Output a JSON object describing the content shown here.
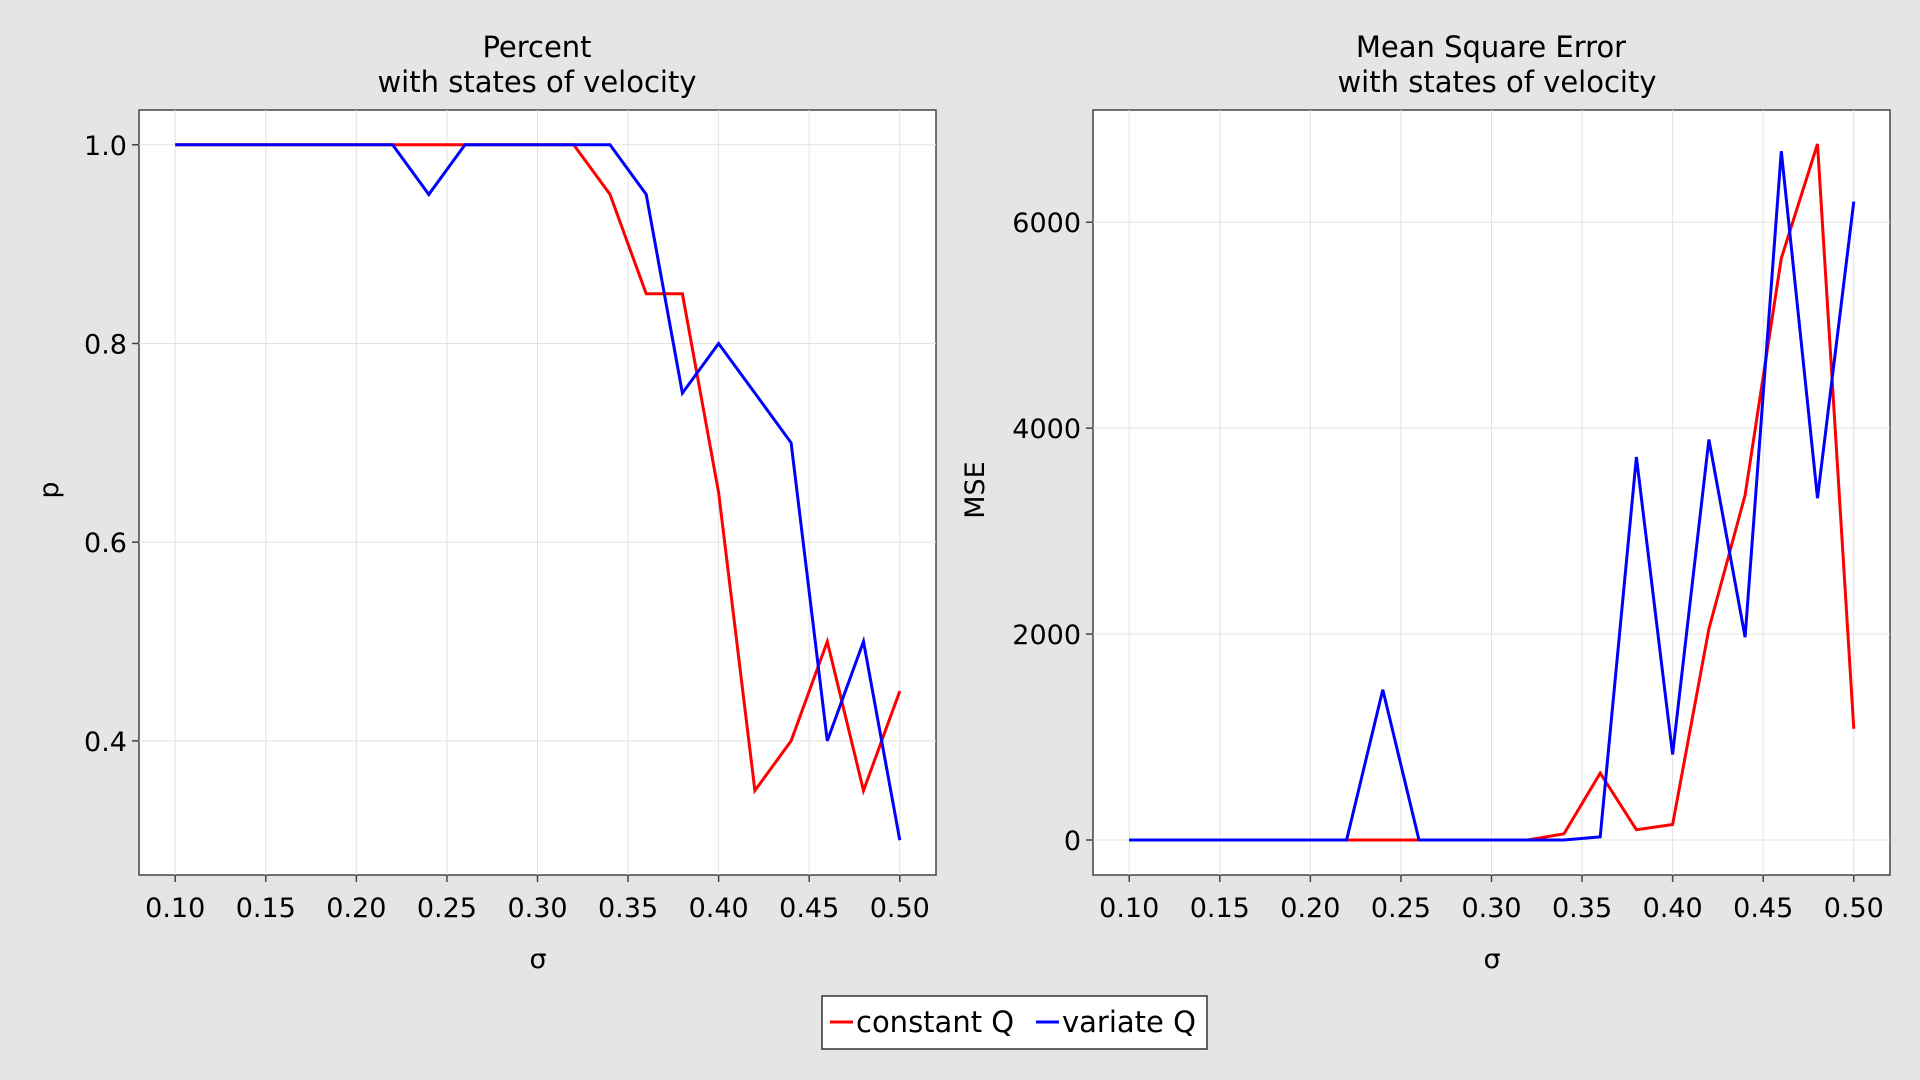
{
  "legend": {
    "items": [
      {
        "label": "constant Q",
        "color": "#ff0000"
      },
      {
        "label": "variate Q",
        "color": "#0000ff"
      }
    ]
  },
  "chart_data": [
    {
      "type": "line",
      "title": [
        "Percent",
        "with states of velocity"
      ],
      "xlabel": "σ",
      "ylabel": "p",
      "xlim": [
        0.08,
        0.52
      ],
      "ylim": [
        0.265,
        1.035
      ],
      "xticks": [
        0.1,
        0.15,
        0.2,
        0.25,
        0.3,
        0.35,
        0.4,
        0.45,
        0.5
      ],
      "xtick_labels": [
        "0.10",
        "0.15",
        "0.20",
        "0.25",
        "0.30",
        "0.35",
        "0.40",
        "0.45",
        "0.50"
      ],
      "yticks": [
        0.4,
        0.6,
        0.8,
        1.0
      ],
      "ytick_labels": [
        "0.4",
        "0.6",
        "0.8",
        "1.0"
      ],
      "grid": true,
      "x": [
        0.1,
        0.12,
        0.14,
        0.16,
        0.18,
        0.2,
        0.22,
        0.24,
        0.26,
        0.28,
        0.3,
        0.32,
        0.34,
        0.36,
        0.38,
        0.4,
        0.42,
        0.44,
        0.46,
        0.48,
        0.5
      ],
      "series": [
        {
          "name": "constant Q",
          "color": "#ff0000",
          "values": [
            1.0,
            1.0,
            1.0,
            1.0,
            1.0,
            1.0,
            1.0,
            1.0,
            1.0,
            1.0,
            1.0,
            1.0,
            0.95,
            0.85,
            0.85,
            0.65,
            0.35,
            0.4,
            0.5,
            0.35,
            0.45
          ]
        },
        {
          "name": "variate Q",
          "color": "#0000ff",
          "values": [
            1.0,
            1.0,
            1.0,
            1.0,
            1.0,
            1.0,
            1.0,
            0.95,
            1.0,
            1.0,
            1.0,
            1.0,
            1.0,
            0.95,
            0.75,
            0.8,
            0.75,
            0.7,
            0.4,
            0.5,
            0.3
          ]
        }
      ]
    },
    {
      "type": "line",
      "title": [
        "Mean Square Error",
        "with states of velocity"
      ],
      "xlabel": "σ",
      "ylabel": "MSE",
      "xlim": [
        0.08,
        0.52
      ],
      "ylim": [
        -340,
        7090
      ],
      "xticks": [
        0.1,
        0.15,
        0.2,
        0.25,
        0.3,
        0.35,
        0.4,
        0.45,
        0.5
      ],
      "xtick_labels": [
        "0.10",
        "0.15",
        "0.20",
        "0.25",
        "0.30",
        "0.35",
        "0.40",
        "0.45",
        "0.50"
      ],
      "yticks": [
        0,
        2000,
        4000,
        6000
      ],
      "ytick_labels": [
        "0",
        "2000",
        "4000",
        "6000"
      ],
      "grid": true,
      "x": [
        0.1,
        0.12,
        0.14,
        0.16,
        0.18,
        0.2,
        0.22,
        0.24,
        0.26,
        0.28,
        0.3,
        0.32,
        0.34,
        0.36,
        0.38,
        0.4,
        0.42,
        0.44,
        0.46,
        0.48,
        0.5
      ],
      "series": [
        {
          "name": "constant Q",
          "color": "#ff0000",
          "values": [
            0,
            0,
            0,
            0,
            0,
            0,
            0,
            0,
            0,
            0,
            0,
            0,
            60,
            650,
            100,
            150,
            2050,
            3350,
            5650,
            6760,
            1080
          ]
        },
        {
          "name": "variate Q",
          "color": "#0000ff",
          "values": [
            0,
            0,
            0,
            0,
            0,
            0,
            0,
            1460,
            0,
            0,
            0,
            0,
            0,
            30,
            3720,
            830,
            3890,
            1970,
            6690,
            3320,
            6200
          ]
        }
      ]
    }
  ]
}
